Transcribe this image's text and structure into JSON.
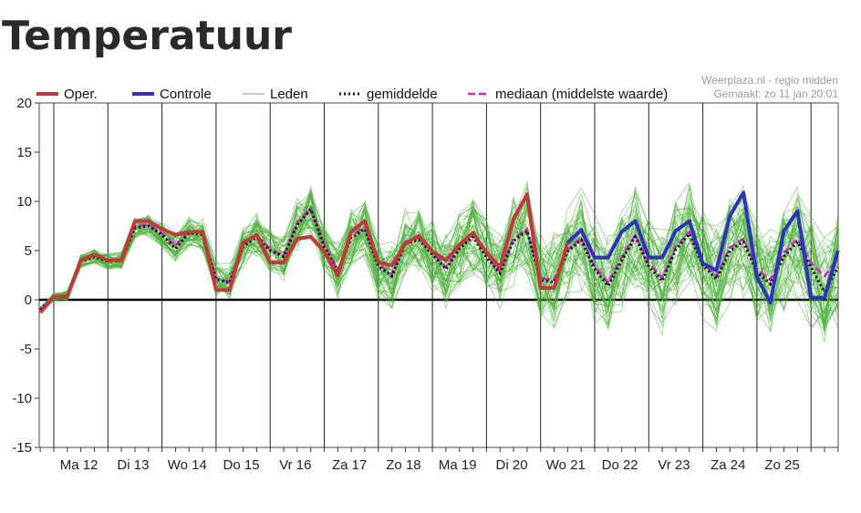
{
  "title": "Temperatuur",
  "credit": {
    "line1": "Weerplaza.nl - regio midden",
    "line2": "Gemaakt: zo 11 jan 20:01"
  },
  "colors": {
    "oper": "#c0393b",
    "controle": "#2e34b8",
    "leden": "#4caf3a",
    "gemiddelde": "#111111",
    "mediaan": "#cc22cc",
    "zero_line": "#000000",
    "day_line": "#222222"
  },
  "legend": [
    {
      "key": "oper",
      "label": "Oper.",
      "style": "thick"
    },
    {
      "key": "controle",
      "label": "Controle",
      "style": "thick"
    },
    {
      "key": "leden",
      "label": "Leden",
      "style": "thin"
    },
    {
      "key": "gemiddelde",
      "label": "gemiddelde",
      "style": "dotted"
    },
    {
      "key": "mediaan",
      "label": "mediaan (middelste waarde)",
      "style": "dashed"
    }
  ],
  "chart_data": {
    "type": "line",
    "ylim": [
      -15,
      20
    ],
    "yticks": [
      -15,
      -10,
      -5,
      0,
      5,
      10,
      15,
      20
    ],
    "xlim": [
      0,
      59
    ],
    "day_labels": [
      "Ma 12",
      "Di 13",
      "Wo 14",
      "Do 15",
      "Vr 16",
      "Za 17",
      "Zo 18",
      "Ma 19",
      "Di 20",
      "Wo 21",
      "Do 22",
      "Vr 23",
      "Za 24",
      "Zo 25"
    ],
    "series": [
      {
        "name": "Oper.",
        "key": "oper",
        "x": [
          0,
          1,
          2,
          3,
          4,
          5,
          6,
          7,
          8,
          9,
          10,
          11,
          12,
          13,
          14,
          15,
          16,
          17,
          18,
          19,
          20,
          21,
          22,
          23,
          24,
          25,
          26,
          27,
          28,
          29,
          30,
          31,
          32,
          33,
          34,
          35,
          36,
          37,
          38,
          39
        ],
        "values": [
          -1.3,
          0.3,
          0.3,
          4.0,
          4.6,
          4.0,
          4.0,
          8.0,
          8.0,
          7.2,
          6.6,
          6.9,
          6.9,
          1.0,
          1.0,
          5.8,
          6.6,
          3.8,
          3.8,
          6.2,
          6.4,
          4.9,
          2.5,
          6.9,
          8.0,
          3.8,
          3.5,
          5.7,
          6.5,
          4.9,
          4.0,
          5.6,
          6.8,
          4.8,
          3.3,
          8.2,
          10.7,
          1.2,
          1.2,
          5.8
        ]
      },
      {
        "name": "Controle",
        "key": "controle",
        "x": [
          39,
          40,
          41,
          42,
          43,
          44,
          45,
          46,
          47,
          48,
          49,
          50,
          51,
          52,
          53,
          54,
          55,
          56,
          57,
          58,
          59
        ],
        "values": [
          5.8,
          7.1,
          4.3,
          4.3,
          6.9,
          8.0,
          4.3,
          4.3,
          7.0,
          8.0,
          3.7,
          3.0,
          8.5,
          10.9,
          2.3,
          -0.3,
          7.0,
          9.0,
          0.2,
          0.2,
          5.0
        ]
      },
      {
        "name": "gemiddelde",
        "key": "gemiddelde",
        "x": [
          0,
          1,
          2,
          3,
          4,
          5,
          6,
          7,
          8,
          9,
          10,
          11,
          12,
          13,
          14,
          15,
          16,
          17,
          18,
          19,
          20,
          21,
          22,
          23,
          24,
          25,
          26,
          27,
          28,
          29,
          30,
          31,
          32,
          33,
          34,
          35,
          36,
          37,
          38,
          39,
          40,
          41,
          42,
          43,
          44,
          45,
          46,
          47,
          48,
          49,
          50,
          51,
          52,
          53,
          54,
          55,
          56,
          57,
          58,
          59
        ],
        "values": [
          -1.0,
          0.3,
          0.4,
          3.9,
          4.4,
          3.9,
          4.0,
          7.3,
          7.5,
          6.6,
          5.2,
          6.8,
          6.6,
          2.1,
          1.7,
          5.4,
          6.4,
          5.0,
          4.4,
          7.6,
          9.2,
          5.4,
          2.9,
          6.3,
          7.2,
          3.4,
          2.4,
          5.7,
          6.1,
          4.6,
          3.1,
          5.2,
          6.4,
          4.3,
          2.7,
          6.0,
          7.0,
          2.0,
          1.8,
          4.9,
          6.1,
          3.1,
          1.4,
          4.0,
          6.4,
          3.4,
          1.9,
          5.1,
          6.7,
          3.5,
          2.1,
          5.0,
          5.9,
          2.8,
          1.6,
          4.4,
          5.9,
          3.3,
          0.8,
          3.3
        ]
      },
      {
        "name": "mediaan (middelste waarde)",
        "key": "mediaan",
        "x": [
          0,
          1,
          2,
          3,
          4,
          5,
          6,
          7,
          8,
          9,
          10,
          11,
          12,
          13,
          14,
          15,
          16,
          17,
          18,
          19,
          20,
          21,
          22,
          23,
          24,
          25,
          26,
          27,
          28,
          29,
          30,
          31,
          32,
          33,
          34,
          35,
          36,
          37,
          38,
          39,
          40,
          41,
          42,
          43,
          44,
          45,
          46,
          47,
          48,
          49,
          50,
          51,
          52,
          53,
          54,
          55,
          56,
          57,
          58,
          59
        ],
        "values": [
          -1.0,
          0.3,
          0.4,
          4.0,
          4.5,
          4.0,
          4.1,
          7.5,
          7.6,
          6.8,
          5.5,
          7.0,
          6.8,
          2.2,
          1.8,
          5.6,
          6.6,
          5.1,
          4.5,
          7.8,
          9.3,
          5.6,
          3.0,
          6.5,
          7.4,
          3.6,
          2.6,
          5.9,
          6.3,
          4.8,
          3.3,
          5.4,
          6.6,
          4.5,
          2.9,
          6.2,
          7.2,
          2.2,
          2.0,
          5.1,
          6.3,
          3.4,
          1.7,
          4.3,
          6.6,
          3.7,
          2.2,
          5.4,
          6.9,
          3.8,
          2.4,
          5.3,
          6.2,
          3.1,
          2.0,
          4.8,
          6.2,
          3.7,
          2.4,
          4.3
        ]
      }
    ],
    "members_count": 50
  }
}
